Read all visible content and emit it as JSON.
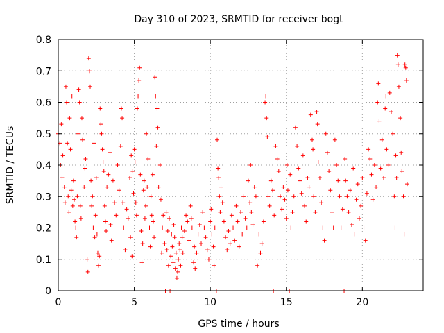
{
  "chart_data": {
    "type": "scatter",
    "title": "Day 310 of 2023, SRMTID for receiver bogt",
    "xlabel": "GPS time / hours",
    "ylabel": "SRMTID / TECUs",
    "xlim": [
      0,
      24
    ],
    "ylim": [
      0,
      0.8
    ],
    "xticks": [
      0,
      5,
      10,
      15,
      20
    ],
    "xtick_labels": [
      "0",
      "5",
      "10",
      "15",
      "20"
    ],
    "yticks": [
      0,
      0.1,
      0.2,
      0.3,
      0.4,
      0.5,
      0.6,
      0.7,
      0.8
    ],
    "ytick_labels": [
      "0",
      "0.1",
      "0.2",
      "0.3",
      "0.4",
      "0.5",
      "0.6",
      "0.7",
      "0.8"
    ],
    "grid": true,
    "marker": "+",
    "series_color": "#ff0000",
    "series": [
      {
        "name": "SRMTID",
        "points": [
          [
            0.0,
            0.5
          ],
          [
            0.1,
            0.47
          ],
          [
            0.15,
            0.4
          ],
          [
            0.2,
            0.53
          ],
          [
            0.25,
            0.36
          ],
          [
            0.3,
            0.43
          ],
          [
            0.4,
            0.33
          ],
          [
            0.45,
            0.28
          ],
          [
            0.5,
            0.65
          ],
          [
            0.55,
            0.6
          ],
          [
            0.6,
            0.47
          ],
          [
            0.65,
            0.3
          ],
          [
            0.7,
            0.25
          ],
          [
            0.75,
            0.55
          ],
          [
            0.8,
            0.45
          ],
          [
            0.85,
            0.32
          ],
          [
            0.9,
            0.62
          ],
          [
            0.95,
            0.27
          ],
          [
            1.0,
            0.35
          ],
          [
            1.05,
            0.29
          ],
          [
            1.1,
            0.22
          ],
          [
            1.15,
            0.2
          ],
          [
            1.2,
            0.17
          ],
          [
            1.25,
            0.3
          ],
          [
            1.3,
            0.5
          ],
          [
            1.35,
            0.64
          ],
          [
            1.4,
            0.6
          ],
          [
            1.45,
            0.27
          ],
          [
            1.5,
            0.23
          ],
          [
            1.55,
            0.55
          ],
          [
            1.6,
            0.48
          ],
          [
            1.7,
            0.33
          ],
          [
            1.75,
            0.39
          ],
          [
            1.8,
            0.42
          ],
          [
            1.9,
            0.1
          ],
          [
            1.95,
            0.06
          ],
          [
            2.0,
            0.74
          ],
          [
            2.05,
            0.7
          ],
          [
            2.1,
            0.65
          ],
          [
            2.15,
            0.35
          ],
          [
            2.2,
            0.27
          ],
          [
            2.25,
            0.3
          ],
          [
            2.3,
            0.2
          ],
          [
            2.35,
            0.47
          ],
          [
            2.4,
            0.17
          ],
          [
            2.45,
            0.24
          ],
          [
            2.5,
            0.36
          ],
          [
            2.55,
            0.18
          ],
          [
            2.6,
            0.12
          ],
          [
            2.65,
            0.08
          ],
          [
            2.7,
            0.11
          ],
          [
            2.75,
            0.58
          ],
          [
            2.8,
            0.53
          ],
          [
            2.85,
            0.5
          ],
          [
            2.9,
            0.45
          ],
          [
            2.95,
            0.41
          ],
          [
            3.0,
            0.38
          ],
          [
            3.05,
            0.27
          ],
          [
            3.1,
            0.22
          ],
          [
            3.15,
            0.19
          ],
          [
            3.2,
            0.33
          ],
          [
            3.3,
            0.37
          ],
          [
            3.4,
            0.44
          ],
          [
            3.45,
            0.21
          ],
          [
            3.5,
            0.16
          ],
          [
            3.6,
            0.35
          ],
          [
            3.7,
            0.28
          ],
          [
            3.8,
            0.24
          ],
          [
            3.9,
            0.4
          ],
          [
            4.0,
            0.32
          ],
          [
            4.1,
            0.46
          ],
          [
            4.15,
            0.58
          ],
          [
            4.2,
            0.55
          ],
          [
            4.25,
            0.28
          ],
          [
            4.3,
            0.2
          ],
          [
            4.4,
            0.13
          ],
          [
            4.5,
            0.26
          ],
          [
            4.6,
            0.23
          ],
          [
            4.7,
            0.36
          ],
          [
            4.75,
            0.17
          ],
          [
            4.8,
            0.43
          ],
          [
            4.85,
            0.11
          ],
          [
            4.9,
            0.38
          ],
          [
            4.95,
            0.31
          ],
          [
            5.0,
            0.45
          ],
          [
            5.05,
            0.41
          ],
          [
            5.1,
            0.28
          ],
          [
            5.15,
            0.24
          ],
          [
            5.2,
            0.58
          ],
          [
            5.25,
            0.62
          ],
          [
            5.3,
            0.67
          ],
          [
            5.35,
            0.71
          ],
          [
            5.4,
            0.37
          ],
          [
            5.45,
            0.19
          ],
          [
            5.5,
            0.09
          ],
          [
            5.55,
            0.15
          ],
          [
            5.6,
            0.32
          ],
          [
            5.65,
            0.35
          ],
          [
            5.7,
            0.23
          ],
          [
            5.75,
            0.27
          ],
          [
            5.8,
            0.5
          ],
          [
            5.85,
            0.33
          ],
          [
            5.9,
            0.42
          ],
          [
            6.0,
            0.2
          ],
          [
            6.05,
            0.14
          ],
          [
            6.1,
            0.3
          ],
          [
            6.15,
            0.24
          ],
          [
            6.2,
            0.37
          ],
          [
            6.25,
            0.22
          ],
          [
            6.3,
            0.17
          ],
          [
            6.35,
            0.68
          ],
          [
            6.4,
            0.62
          ],
          [
            6.45,
            0.46
          ],
          [
            6.5,
            0.58
          ],
          [
            6.55,
            0.52
          ],
          [
            6.6,
            0.33
          ],
          [
            6.7,
            0.4
          ],
          [
            6.75,
            0.29
          ],
          [
            6.8,
            0.12
          ],
          [
            6.85,
            0.2
          ],
          [
            6.9,
            0.24
          ],
          [
            7.0,
            0.15
          ],
          [
            7.05,
            0.0
          ],
          [
            7.1,
            0.25
          ],
          [
            7.15,
            0.13
          ],
          [
            7.2,
            0.19
          ],
          [
            7.25,
            0.08
          ],
          [
            7.3,
            0.23
          ],
          [
            7.35,
            0.0
          ],
          [
            7.4,
            0.11
          ],
          [
            7.45,
            0.18
          ],
          [
            7.5,
            0.14
          ],
          [
            7.55,
            0.09
          ],
          [
            7.6,
            0.21
          ],
          [
            7.65,
            0.17
          ],
          [
            7.7,
            0.07
          ],
          [
            7.75,
            0.12
          ],
          [
            7.8,
            0.04
          ],
          [
            7.85,
            0.06
          ],
          [
            7.9,
            0.1
          ],
          [
            7.95,
            0.15
          ],
          [
            8.0,
            0.13
          ],
          [
            8.05,
            0.08
          ],
          [
            8.1,
            0.2
          ],
          [
            8.15,
            0.17
          ],
          [
            8.2,
            0.12
          ],
          [
            8.3,
            0.19
          ],
          [
            8.4,
            0.24
          ],
          [
            8.5,
            0.22
          ],
          [
            8.6,
            0.16
          ],
          [
            8.7,
            0.27
          ],
          [
            8.75,
            0.23
          ],
          [
            8.8,
            0.2
          ],
          [
            8.9,
            0.09
          ],
          [
            8.95,
            0.14
          ],
          [
            9.0,
            0.07
          ],
          [
            9.1,
            0.12
          ],
          [
            9.2,
            0.18
          ],
          [
            9.3,
            0.21
          ],
          [
            9.4,
            0.15
          ],
          [
            9.5,
            0.25
          ],
          [
            9.6,
            0.2
          ],
          [
            9.7,
            0.17
          ],
          [
            9.8,
            0.13
          ],
          [
            9.9,
            0.1
          ],
          [
            10.0,
            0.22
          ],
          [
            10.05,
            0.26
          ],
          [
            10.1,
            0.18
          ],
          [
            10.2,
            0.14
          ],
          [
            10.25,
            0.08
          ],
          [
            10.3,
            0.2
          ],
          [
            10.4,
            0.0
          ],
          [
            10.45,
            0.48
          ],
          [
            10.5,
            0.39
          ],
          [
            10.55,
            0.36
          ],
          [
            10.6,
            0.3
          ],
          [
            10.65,
            0.25
          ],
          [
            10.7,
            0.33
          ],
          [
            10.8,
            0.28
          ],
          [
            10.9,
            0.22
          ],
          [
            11.0,
            0.17
          ],
          [
            11.1,
            0.13
          ],
          [
            11.2,
            0.19
          ],
          [
            11.3,
            0.15
          ],
          [
            11.4,
            0.24
          ],
          [
            11.5,
            0.2
          ],
          [
            11.6,
            0.16
          ],
          [
            11.7,
            0.27
          ],
          [
            11.8,
            0.22
          ],
          [
            11.9,
            0.14
          ],
          [
            12.0,
            0.25
          ],
          [
            12.1,
            0.18
          ],
          [
            12.2,
            0.3
          ],
          [
            12.3,
            0.23
          ],
          [
            12.4,
            0.2
          ],
          [
            12.5,
            0.35
          ],
          [
            12.6,
            0.28
          ],
          [
            12.65,
            0.4
          ],
          [
            12.7,
            0.25
          ],
          [
            12.8,
            0.21
          ],
          [
            12.9,
            0.33
          ],
          [
            13.0,
            0.3
          ],
          [
            13.1,
            0.08
          ],
          [
            13.2,
            0.18
          ],
          [
            13.3,
            0.12
          ],
          [
            13.4,
            0.15
          ],
          [
            13.5,
            0.22
          ],
          [
            13.6,
            0.6
          ],
          [
            13.65,
            0.62
          ],
          [
            13.7,
            0.55
          ],
          [
            13.75,
            0.49
          ],
          [
            13.8,
            0.3
          ],
          [
            13.9,
            0.27
          ],
          [
            14.0,
            0.35
          ],
          [
            14.1,
            0.32
          ],
          [
            14.15,
            0.0
          ],
          [
            14.2,
            0.24
          ],
          [
            14.3,
            0.46
          ],
          [
            14.4,
            0.42
          ],
          [
            14.5,
            0.38
          ],
          [
            14.6,
            0.3
          ],
          [
            14.7,
            0.26
          ],
          [
            14.8,
            0.33
          ],
          [
            14.9,
            0.29
          ],
          [
            15.0,
            0.23
          ],
          [
            15.05,
            0.4
          ],
          [
            15.1,
            0.32
          ],
          [
            15.2,
            0.0
          ],
          [
            15.25,
            0.37
          ],
          [
            15.3,
            0.2
          ],
          [
            15.4,
            0.25
          ],
          [
            15.5,
            0.3
          ],
          [
            15.6,
            0.52
          ],
          [
            15.7,
            0.46
          ],
          [
            15.8,
            0.39
          ],
          [
            15.9,
            0.35
          ],
          [
            16.0,
            0.31
          ],
          [
            16.1,
            0.43
          ],
          [
            16.2,
            0.27
          ],
          [
            16.3,
            0.22
          ],
          [
            16.4,
            0.36
          ],
          [
            16.5,
            0.33
          ],
          [
            16.6,
            0.56
          ],
          [
            16.7,
            0.48
          ],
          [
            16.75,
            0.45
          ],
          [
            16.8,
            0.3
          ],
          [
            16.9,
            0.25
          ],
          [
            17.0,
            0.57
          ],
          [
            17.05,
            0.53
          ],
          [
            17.1,
            0.41
          ],
          [
            17.2,
            0.36
          ],
          [
            17.3,
            0.28
          ],
          [
            17.4,
            0.2
          ],
          [
            17.5,
            0.16
          ],
          [
            17.6,
            0.5
          ],
          [
            17.7,
            0.44
          ],
          [
            17.8,
            0.38
          ],
          [
            17.9,
            0.32
          ],
          [
            18.0,
            0.25
          ],
          [
            18.1,
            0.2
          ],
          [
            18.2,
            0.48
          ],
          [
            18.3,
            0.4
          ],
          [
            18.4,
            0.35
          ],
          [
            18.5,
            0.3
          ],
          [
            18.6,
            0.2
          ],
          [
            18.7,
            0.26
          ],
          [
            18.8,
            0.0
          ],
          [
            18.85,
            0.42
          ],
          [
            18.9,
            0.35
          ],
          [
            19.0,
            0.3
          ],
          [
            19.1,
            0.25
          ],
          [
            19.2,
            0.32
          ],
          [
            19.3,
            0.21
          ],
          [
            19.4,
            0.39
          ],
          [
            19.5,
            0.18
          ],
          [
            19.6,
            0.29
          ],
          [
            19.7,
            0.34
          ],
          [
            19.8,
            0.23
          ],
          [
            19.9,
            0.27
          ],
          [
            20.0,
            0.36
          ],
          [
            20.1,
            0.2
          ],
          [
            20.2,
            0.16
          ],
          [
            20.3,
            0.31
          ],
          [
            20.4,
            0.45
          ],
          [
            20.5,
            0.42
          ],
          [
            20.6,
            0.37
          ],
          [
            20.7,
            0.29
          ],
          [
            20.8,
            0.4
          ],
          [
            20.9,
            0.33
          ],
          [
            21.0,
            0.6
          ],
          [
            21.05,
            0.66
          ],
          [
            21.1,
            0.54
          ],
          [
            21.2,
            0.39
          ],
          [
            21.3,
            0.48
          ],
          [
            21.4,
            0.36
          ],
          [
            21.5,
            0.58
          ],
          [
            21.55,
            0.62
          ],
          [
            21.6,
            0.45
          ],
          [
            21.7,
            0.4
          ],
          [
            21.8,
            0.63
          ],
          [
            21.9,
            0.57
          ],
          [
            22.0,
            0.5
          ],
          [
            22.1,
            0.3
          ],
          [
            22.15,
            0.2
          ],
          [
            22.2,
            0.43
          ],
          [
            22.25,
            0.36
          ],
          [
            22.3,
            0.75
          ],
          [
            22.35,
            0.72
          ],
          [
            22.4,
            0.65
          ],
          [
            22.5,
            0.55
          ],
          [
            22.55,
            0.44
          ],
          [
            22.6,
            0.38
          ],
          [
            22.7,
            0.3
          ],
          [
            22.75,
            0.18
          ],
          [
            22.8,
            0.72
          ],
          [
            22.85,
            0.71
          ],
          [
            22.9,
            0.67
          ],
          [
            22.95,
            0.34
          ]
        ]
      }
    ]
  }
}
